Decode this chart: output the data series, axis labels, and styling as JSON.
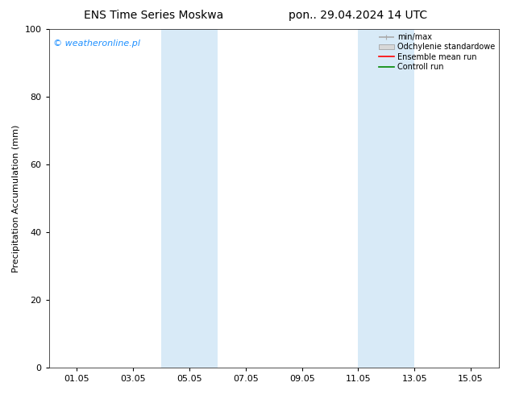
{
  "title_left": "ENS Time Series Moskwa",
  "title_right": "pon.. 29.04.2024 14 UTC",
  "ylabel": "Precipitation Accumulation (mm)",
  "ylim": [
    0,
    100
  ],
  "yticks": [
    0,
    20,
    40,
    60,
    80,
    100
  ],
  "xtick_labels": [
    "01.05",
    "03.05",
    "05.05",
    "07.05",
    "09.05",
    "11.05",
    "13.05",
    "15.05"
  ],
  "xtick_positions": [
    1,
    3,
    5,
    7,
    9,
    11,
    13,
    15
  ],
  "xlim": [
    0.0,
    16.0
  ],
  "shade_bands": [
    {
      "x_start": 4.0,
      "x_end": 6.0,
      "color": "#d8eaf7",
      "alpha": 1.0
    },
    {
      "x_start": 11.0,
      "x_end": 13.0,
      "color": "#d8eaf7",
      "alpha": 1.0
    }
  ],
  "watermark_text": "© weatheronline.pl",
  "watermark_color": "#1e90ff",
  "legend_labels": [
    "min/max",
    "Odchylenie standardowe",
    "Ensemble mean run",
    "Controll run"
  ],
  "legend_line_color_0": "#aaaaaa",
  "legend_line_color_1": "#cccccc",
  "legend_line_color_2": "#ff0000",
  "legend_line_color_3": "#008800",
  "background_color": "#ffffff",
  "title_fontsize": 10,
  "label_fontsize": 8,
  "tick_fontsize": 8,
  "legend_fontsize": 7,
  "watermark_fontsize": 8
}
